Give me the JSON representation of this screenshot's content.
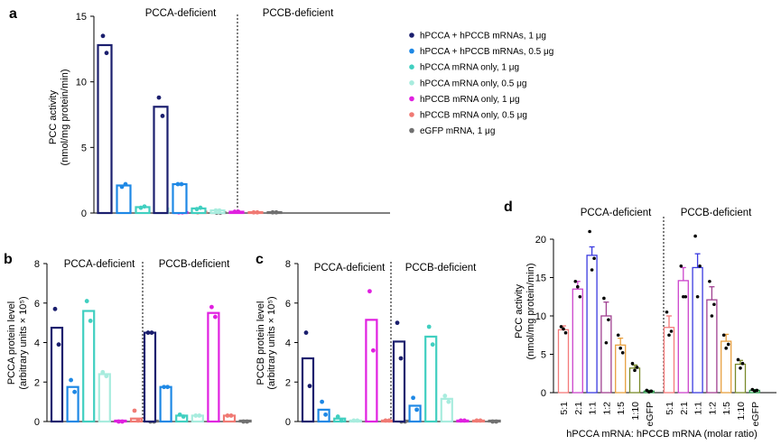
{
  "colors": {
    "navy": "#1b1f6e",
    "blue": "#1e88e5",
    "teal": "#40cfc0",
    "mint": "#a8ecde",
    "magenta": "#e020e0",
    "salmon": "#f07a74",
    "gray": "#707070",
    "r_5_1": "#f47a7a",
    "r_2_1": "#cc44cc",
    "r_1_1": "#3a3ae0",
    "r_1_2": "#a04090",
    "r_1_5": "#e8a040",
    "r_1_10": "#7a8a2a",
    "r_egfp": "#2a9a4a"
  },
  "legend": [
    {
      "label": "hPCCA + hPCCB mRNAs, 1 μg",
      "color": "#1b1f6e"
    },
    {
      "label": "hPCCA + hPCCB mRNAs, 0.5 μg",
      "color": "#1e88e5"
    },
    {
      "label": "hPCCA mRNA only, 1 μg",
      "color": "#40cfc0"
    },
    {
      "label": "hPCCA mRNA only, 0.5 μg",
      "color": "#a8ecde"
    },
    {
      "label": "hPCCB mRNA only, 1 μg",
      "color": "#e020e0"
    },
    {
      "label": "hPCCB mRNA only, 0.5 μg",
      "color": "#f07a74"
    },
    {
      "label": "eGFP mRNA, 1 μg",
      "color": "#707070"
    }
  ],
  "chart_data": [
    {
      "panel": "a",
      "type": "bar",
      "ylabel": "PCC activity (nmol/mg protein/min)",
      "ylim": [
        0,
        15
      ],
      "yticks": [
        0,
        5,
        10,
        15
      ],
      "group_labels": [
        "PCCA-deficient",
        "PCCB-deficient"
      ],
      "groups": [
        {
          "values": [
            12.8,
            2.1,
            0.45,
            0.35,
            0.05,
            0.1,
            0.02
          ],
          "points": [
            [
              13.5,
              12.2
            ],
            [
              2.0,
              2.2
            ],
            [
              0.4,
              0.5
            ],
            [
              0.3,
              0.4
            ],
            [
              0.05,
              0.05
            ],
            [
              0.05,
              0.15
            ],
            [
              0.02,
              0.02
            ]
          ]
        },
        {
          "values": [
            8.1,
            2.2,
            0.35,
            0.2,
            0.1,
            0.05,
            0.05
          ],
          "points": [
            [
              8.8,
              7.4
            ],
            [
              2.2,
              2.2
            ],
            [
              0.3,
              0.4
            ],
            [
              0.2,
              0.2
            ],
            [
              0.1,
              0.1
            ],
            [
              0.05,
              0.05
            ],
            [
              0.05,
              0.05
            ]
          ]
        }
      ]
    },
    {
      "panel": "b",
      "type": "bar",
      "ylabel": "PCCA protein level",
      "ylabel2": "(arbitrary units × 10⁵)",
      "ylim": [
        0,
        8
      ],
      "yticks": [
        0,
        2,
        4,
        6,
        8
      ],
      "group_labels": [
        "PCCA-deficient",
        "PCCB-deficient"
      ],
      "groups": [
        {
          "values": [
            4.75,
            1.75,
            5.6,
            2.4,
            0.0,
            0.15,
            0.0
          ],
          "points": [
            [
              5.7,
              3.9
            ],
            [
              2.1,
              1.5
            ],
            [
              6.1,
              5.1
            ],
            [
              2.5,
              2.3
            ],
            [
              0.0,
              0.0
            ],
            [
              0.55,
              0.05
            ],
            [
              0.0,
              0.0
            ]
          ]
        },
        {
          "values": [
            4.5,
            1.75,
            0.3,
            0.3,
            5.5,
            0.3,
            0.0
          ],
          "points": [
            [
              4.5,
              4.5
            ],
            [
              1.75,
              1.75
            ],
            [
              0.35,
              0.25
            ],
            [
              0.3,
              0.3
            ],
            [
              5.8,
              5.3
            ],
            [
              0.3,
              0.3
            ],
            [
              0.0,
              0.0
            ]
          ]
        }
      ]
    },
    {
      "panel": "c",
      "type": "bar",
      "ylabel": "PCCB protein level",
      "ylabel2": "(arbitrary units × 10⁵)",
      "ylim": [
        0,
        8
      ],
      "yticks": [
        0,
        2,
        4,
        6,
        8
      ],
      "group_labels": [
        "PCCA-deficient",
        "PCCB-deficient"
      ],
      "groups": [
        {
          "values": [
            3.2,
            0.6,
            0.15,
            0.05,
            5.15,
            0.05,
            0.0
          ],
          "points": [
            [
              4.5,
              1.8
            ],
            [
              1.0,
              0.35
            ],
            [
              0.25,
              0.05
            ],
            [
              0.05,
              0.05
            ],
            [
              6.6,
              3.6
            ],
            [
              0.05,
              0.05
            ],
            [
              0.0,
              0.0
            ]
          ]
        },
        {
          "values": [
            4.05,
            0.8,
            4.3,
            1.15,
            0.05,
            0.05,
            0.0
          ],
          "points": [
            [
              5.0,
              3.2
            ],
            [
              1.2,
              0.6
            ],
            [
              4.8,
              3.9
            ],
            [
              1.3,
              1.0
            ],
            [
              0.05,
              0.05
            ],
            [
              0.05,
              0.05
            ],
            [
              0.0,
              0.0
            ]
          ]
        }
      ]
    },
    {
      "panel": "d",
      "type": "bar",
      "ylabel": "PCC activity",
      "ylabel2": "(nmol/mg protein/min)",
      "xlabel": "hPCCA mRNA: hPCCB mRNA (molar ratio)",
      "ylim": [
        0,
        20
      ],
      "yticks": [
        0,
        5,
        10,
        15,
        20
      ],
      "categories": [
        "5:1",
        "2:1",
        "1:1",
        "1:2",
        "1:5",
        "1:10",
        "eGFP"
      ],
      "group_labels": [
        "PCCA-deficient",
        "PCCB-deficient"
      ],
      "groups": [
        {
          "values": [
            8.2,
            13.5,
            17.9,
            10.0,
            6.2,
            3.2,
            0.2
          ],
          "err": [
            0.5,
            1.0,
            1.1,
            1.8,
            0.9,
            0.4,
            0.1
          ],
          "points": [
            [
              8.6,
              7.8,
              8.3
            ],
            [
              14.5,
              12.5,
              13.8
            ],
            [
              21.0,
              17.5,
              16.0
            ],
            [
              12.3,
              9.5,
              6.5
            ],
            [
              7.5,
              5.2,
              5.8
            ],
            [
              3.8,
              3.3,
              2.9
            ],
            [
              0.3,
              0.2,
              0.1
            ]
          ]
        },
        {
          "values": [
            8.5,
            14.6,
            16.3,
            12.1,
            6.7,
            3.7,
            0.3
          ],
          "err": [
            1.5,
            1.7,
            1.8,
            1.7,
            0.9,
            0.5,
            0.1
          ],
          "points": [
            [
              10.5,
              8.0,
              7.5
            ],
            [
              16.5,
              12.5,
              12.5
            ],
            [
              20.4,
              16.5,
              12.5
            ],
            [
              14.5,
              11.5,
              10.0
            ],
            [
              7.5,
              6.3,
              5.8
            ],
            [
              4.3,
              3.8,
              3.2
            ],
            [
              0.4,
              0.3,
              0.2
            ]
          ]
        }
      ]
    }
  ]
}
